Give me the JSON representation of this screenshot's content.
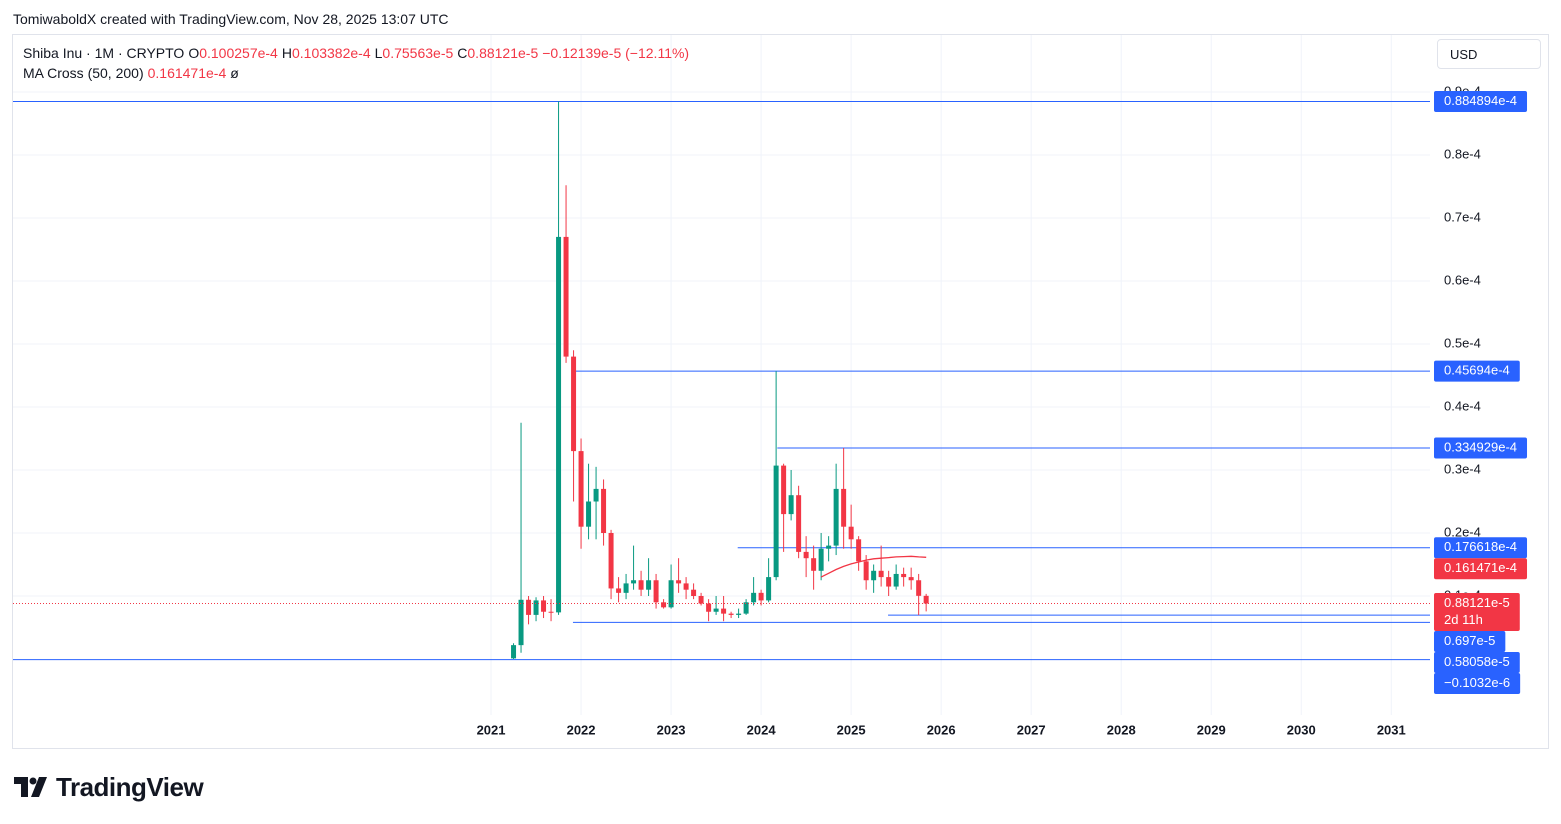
{
  "header": {
    "attribution": "TomiwaboldX created with TradingView.com, Nov 28, 2025 13:07 UTC",
    "currency": "USD",
    "logo": "TradingView"
  },
  "chart_data": {
    "type": "candlestick",
    "ohlc_legend": [
      {
        "key": "O",
        "label": "0.100257e-4"
      },
      {
        "key": "H",
        "label": "0.103382e-4"
      },
      {
        "key": "L",
        "label": "0.75563e-5"
      },
      {
        "key": "C",
        "label": "0.88121e-5"
      }
    ],
    "change_label": "−0.12139e-5 (−12.11%)",
    "x": [
      2021.25,
      2021.3333,
      2021.4167,
      2021.5,
      2021.5833,
      2021.6667,
      2021.75,
      2021.8333,
      2021.9167,
      2022.0,
      2022.0833,
      2022.1667,
      2022.25,
      2022.3333,
      2022.4167,
      2022.5,
      2022.5833,
      2022.6667,
      2022.75,
      2022.8333,
      2022.9167,
      2023.0,
      2023.0833,
      2023.1667,
      2023.25,
      2023.3333,
      2023.4167,
      2023.5,
      2023.5833,
      2023.6667,
      2023.75,
      2023.8333,
      2023.9167,
      2024.0,
      2024.0833,
      2024.1667,
      2024.25,
      2024.3333,
      2024.4167,
      2024.5,
      2024.5833,
      2024.6667,
      2024.75,
      2024.8333,
      2024.9167,
      2025.0,
      2025.0833,
      2025.1667,
      2025.25,
      2025.3333,
      2025.4167,
      2025.5,
      2025.5833,
      2025.6667,
      2025.75,
      2025.8333
    ],
    "series": [
      {
        "name": "Shiba Inu · 1M · CRYPTO",
        "up_color": "#089981",
        "down_color": "#f23645",
        "open": [
          1e-07,
          2.2e-06,
          9.4e-06,
          7e-06,
          9.3e-06,
          7.5e-06,
          7.4e-06,
          6.7e-05,
          4.8e-05,
          3.3e-05,
          2.1e-05,
          2.5e-05,
          2.7e-05,
          2e-05,
          1.12e-05,
          1.05e-05,
          1.2e-05,
          1.25e-05,
          1.1e-05,
          1.25e-05,
          9e-06,
          8.2e-06,
          1.25e-05,
          1.2e-05,
          1.1e-05,
          1e-05,
          8.8e-06,
          7.5e-06,
          8e-06,
          7.2e-06,
          7e-06,
          7.2e-06,
          9e-06,
          1.05e-05,
          9.3e-06,
          1.3e-05,
          3.07e-05,
          2.3e-05,
          2.6e-05,
          1.7e-05,
          1.6e-05,
          1.4e-05,
          1.75e-05,
          1.8e-05,
          2.7e-05,
          2.1e-05,
          1.9e-05,
          1.55e-05,
          1.25e-05,
          1.4e-05,
          1.3e-05,
          1.15e-05,
          1.35e-05,
          1.3e-05,
          1.25e-05,
          1.00257e-05
        ],
        "high": [
          2.5e-06,
          3.75e-05,
          1e-05,
          9.8e-06,
          1e-05,
          9.5e-06,
          8.84894e-05,
          7.52e-05,
          4.9e-05,
          3.5e-05,
          3.1e-05,
          3.05e-05,
          2.85e-05,
          2.05e-05,
          1.3e-05,
          1.35e-05,
          1.8e-05,
          1.4e-05,
          1.6e-05,
          1.35e-05,
          9.5e-06,
          1.5e-05,
          1.6e-05,
          1.3e-05,
          1.2e-05,
          1.05e-05,
          9.5e-06,
          1e-05,
          1e-05,
          7.5e-06,
          8e-06,
          9.5e-06,
          1.3e-05,
          1.1e-05,
          1.6e-05,
          4.5694e-05,
          3.1e-05,
          3e-05,
          2.75e-05,
          1.95e-05,
          1.8e-05,
          2e-05,
          1.95e-05,
          3.1e-05,
          3.34929e-05,
          2.45e-05,
          1.95e-05,
          1.65e-05,
          1.5e-05,
          1.8e-05,
          1.4e-05,
          1.5e-05,
          1.45e-05,
          1.45e-05,
          1.35e-05,
          1.03382e-05
        ],
        "low": [
          0,
          1e-06,
          5.5e-06,
          6e-06,
          6.5e-06,
          6e-06,
          7e-06,
          4.7e-05,
          2.5e-05,
          1.75e-05,
          1.9e-05,
          1.9e-05,
          1.8e-05,
          9.5e-06,
          9e-06,
          9.5e-06,
          1.1e-05,
          1e-05,
          1e-05,
          8e-06,
          8e-06,
          8e-06,
          1.05e-05,
          9.5e-06,
          9.5e-06,
          8.5e-06,
          6e-06,
          7e-06,
          6e-06,
          6.5e-06,
          6.5e-06,
          7e-06,
          8.5e-06,
          8.5e-06,
          9e-06,
          1.25e-05,
          1.7e-05,
          2.2e-05,
          1.6e-05,
          1.3e-05,
          1.1e-05,
          1.25e-05,
          1.55e-05,
          1.65e-05,
          1.75e-05,
          1.75e-05,
          1.4e-05,
          1.1e-05,
          1.05e-05,
          1.15e-05,
          1e-05,
          1.1e-05,
          1.15e-05,
          1.1e-05,
          6.97e-06,
          7.5563e-06
        ],
        "close": [
          2.2e-06,
          9.4e-06,
          7e-06,
          9.3e-06,
          7.5e-06,
          7.4e-06,
          6.7e-05,
          4.8e-05,
          3.3e-05,
          2.1e-05,
          2.5e-05,
          2.7e-05,
          2e-05,
          1.12e-05,
          1.05e-05,
          1.2e-05,
          1.25e-05,
          1.1e-05,
          1.25e-05,
          9e-06,
          8.2e-06,
          1.25e-05,
          1.2e-05,
          1.1e-05,
          1e-05,
          8.8e-06,
          7.5e-06,
          8e-06,
          7.2e-06,
          7e-06,
          7.2e-06,
          9e-06,
          1.05e-05,
          9.3e-06,
          1.3e-05,
          3.07e-05,
          2.3e-05,
          2.6e-05,
          1.7e-05,
          1.6e-05,
          1.4e-05,
          1.75e-05,
          1.8e-05,
          2.7e-05,
          2.1e-05,
          1.9e-05,
          1.55e-05,
          1.25e-05,
          1.4e-05,
          1.3e-05,
          1.15e-05,
          1.35e-05,
          1.3e-05,
          1.25e-05,
          1.00257e-05,
          8.8121e-06
        ]
      }
    ],
    "overlays": [
      {
        "type": "line",
        "name": "MA Cross (50, 200)",
        "value_label": "0.161471e-4",
        "extra_label": "ø",
        "color": "#f23645",
        "x": [
          2024.6667,
          2024.75,
          2024.8333,
          2024.9167,
          2025.0,
          2025.0833,
          2025.1667,
          2025.25,
          2025.3333,
          2025.4167,
          2025.5,
          2025.5833,
          2025.6667,
          2025.75,
          2025.8333
        ],
        "values": [
          1.3e-05,
          1.36e-05,
          1.42e-05,
          1.47e-05,
          1.51e-05,
          1.54e-05,
          1.57e-05,
          1.59e-05,
          1.6e-05,
          1.61e-05,
          1.62e-05,
          1.625e-05,
          1.63e-05,
          1.62e-05,
          1.61471e-05
        ]
      }
    ],
    "last_price": {
      "value": 8.8121e-06,
      "label": "0.88121e-5",
      "countdown": "2d 11h",
      "color": "#f23645"
    },
    "hlines_color": "#2962ff",
    "hlines": [
      {
        "value": 8.84894e-05,
        "label": "0.884894e-4",
        "from": 2015.69
      },
      {
        "value": 4.5694e-05,
        "label": "0.45694e-4",
        "from": 2021.94
      },
      {
        "value": 3.34929e-05,
        "label": "0.334929e-4",
        "from": 2024.18
      },
      {
        "value": 1.76618e-05,
        "label": "0.176618e-4",
        "from": 2023.74
      },
      {
        "value": 6.97e-06,
        "label": "0.697e-5",
        "from": 2025.41
      },
      {
        "value": 5.8058e-06,
        "label": "0.58058e-5",
        "from": 2021.91
      },
      {
        "value": -1.032e-07,
        "label": "−0.1032e-6",
        "from": 2015.69
      }
    ],
    "xlim": [
      2015.69,
      2031.43
    ],
    "xticks": [
      2021,
      2022,
      2023,
      2024,
      2025,
      2026,
      2027,
      2028,
      2029,
      2030,
      2031
    ],
    "ylim": [
      -8.89e-06,
      9.905e-05
    ],
    "yticks": [
      {
        "value": 1e-05,
        "label": "0.1e-4"
      },
      {
        "value": 2e-05,
        "label": "0.2e-4"
      },
      {
        "value": 3e-05,
        "label": "0.3e-4"
      },
      {
        "value": 4e-05,
        "label": "0.4e-4"
      },
      {
        "value": 5e-05,
        "label": "0.5e-4"
      },
      {
        "value": 6e-05,
        "label": "0.6e-4"
      },
      {
        "value": 7e-05,
        "label": "0.7e-4"
      },
      {
        "value": 8e-05,
        "label": "0.8e-4"
      },
      {
        "value": 9e-05,
        "label": "0.9e-4"
      }
    ],
    "grid": true
  }
}
